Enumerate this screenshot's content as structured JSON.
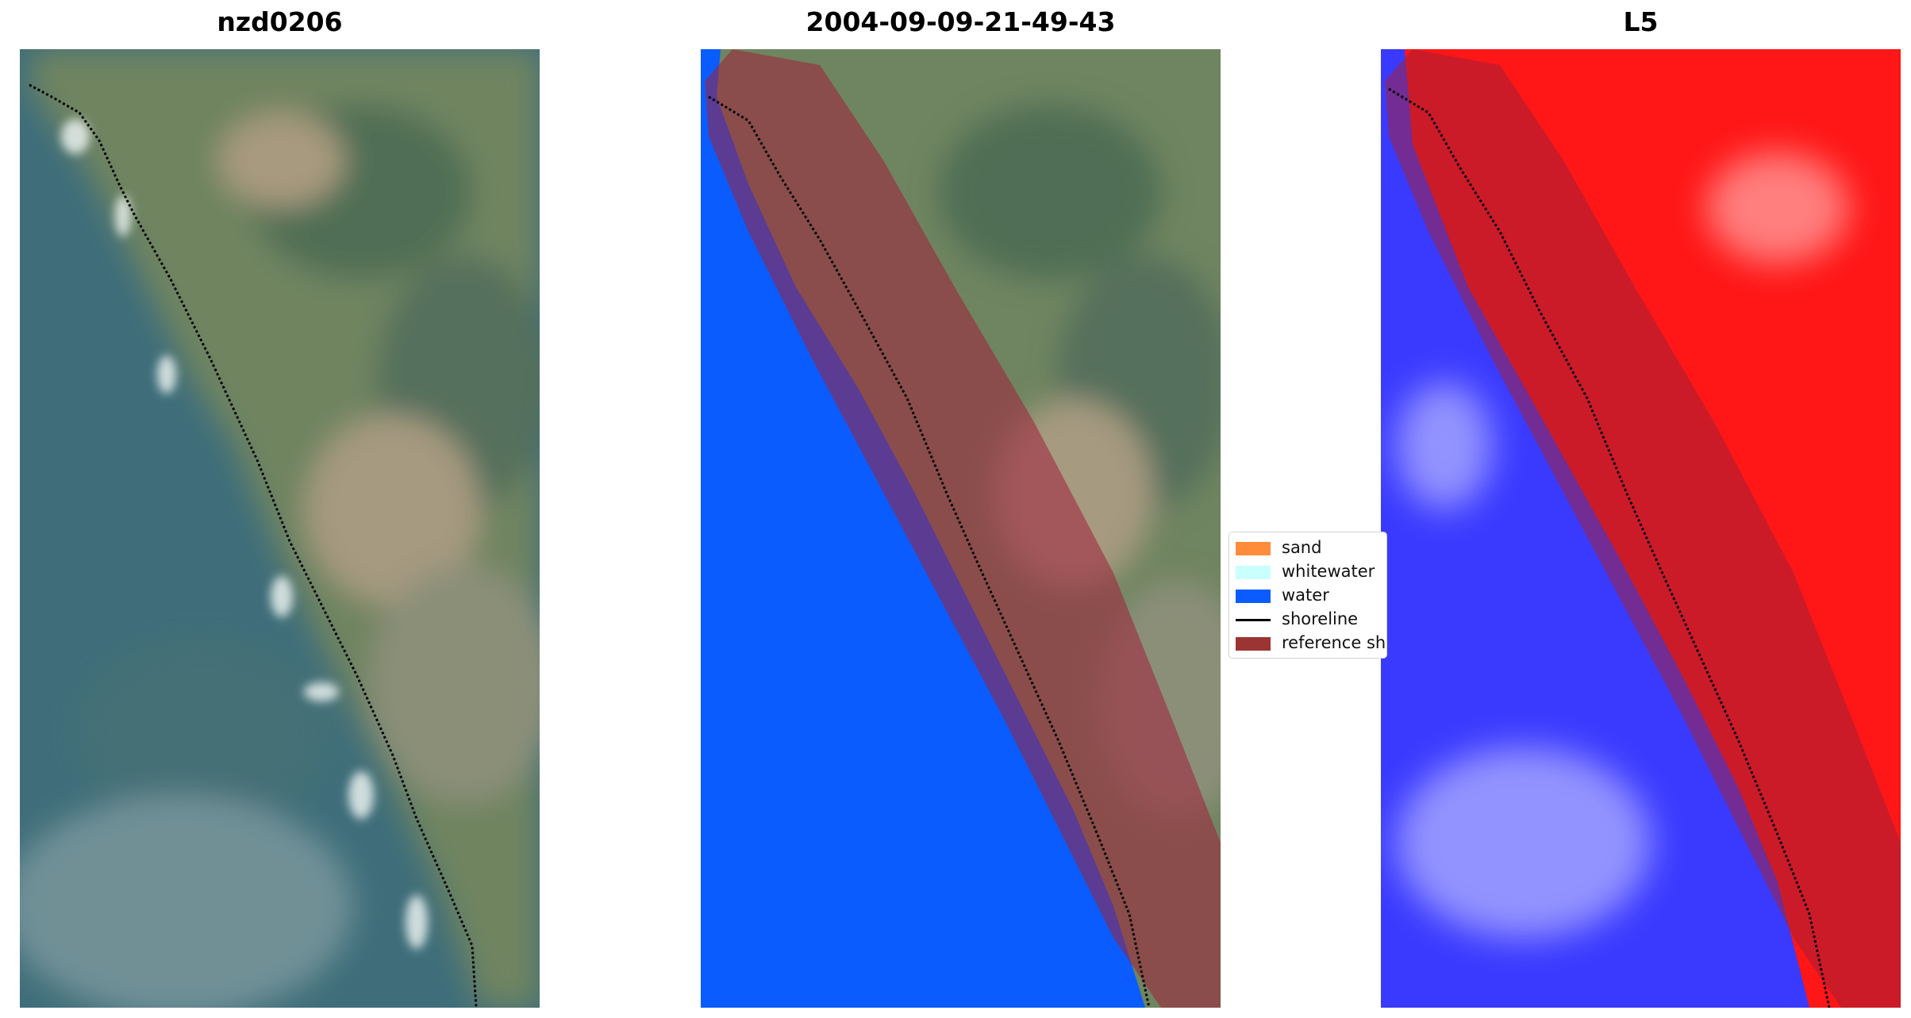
{
  "panels": [
    {
      "title": "nzd0206"
    },
    {
      "title": "2004-09-09-21-49-43"
    },
    {
      "title": "L5"
    }
  ],
  "legend": {
    "items": [
      {
        "label": "sand",
        "color": "#ff8c3a",
        "kind": "patch"
      },
      {
        "label": "whitewater",
        "color": "#c9fffd",
        "kind": "patch"
      },
      {
        "label": "water",
        "color": "#0a5cff",
        "kind": "patch"
      },
      {
        "label": "shoreline",
        "color": "#000000",
        "kind": "line"
      },
      {
        "label": "reference shoreline",
        "color": "#a33a3a",
        "kind": "patch"
      }
    ]
  },
  "colors": {
    "sea": "#3f6e7a",
    "land": "#6f8460",
    "water_class": "#0a5cff",
    "reference_buffer": "#a0203a",
    "index_positive": "#ff1616",
    "index_negative": "#3a3aff"
  }
}
